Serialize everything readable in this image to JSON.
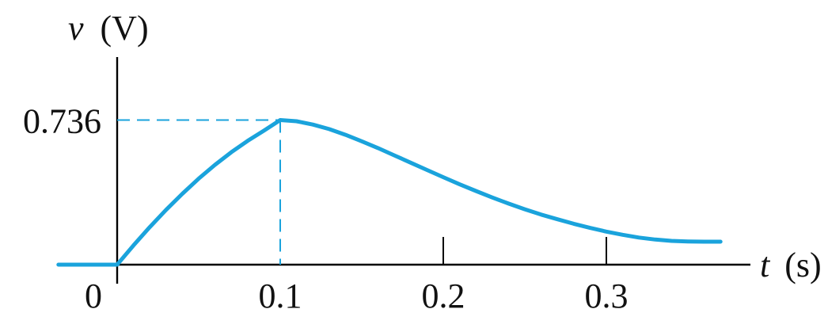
{
  "chart_data": {
    "type": "line",
    "xlabel_var": "t",
    "xlabel_unit": "(s)",
    "ylabel_var": "v",
    "ylabel_unit": "(V)",
    "x_ticks": [
      "0",
      "0.1",
      "0.2",
      "0.3"
    ],
    "x_tick_values": [
      0,
      0.1,
      0.2,
      0.3
    ],
    "y_ticks": [
      "0.736"
    ],
    "y_tick_values": [
      0.736
    ],
    "xlim": [
      -0.036,
      0.385
    ],
    "ylim": [
      0,
      1.0
    ],
    "peak": {
      "x": 0.1,
      "y": 0.736
    },
    "series": [
      {
        "x": [
          -0.036,
          0,
          0.01,
          0.02,
          0.03,
          0.04,
          0.05,
          0.06,
          0.07,
          0.08,
          0.09,
          0.1,
          0.11,
          0.12,
          0.13,
          0.14,
          0.15,
          0.16,
          0.17,
          0.18,
          0.19,
          0.2,
          0.21,
          0.22,
          0.23,
          0.24,
          0.25,
          0.26,
          0.27,
          0.28,
          0.29,
          0.3,
          0.31,
          0.32,
          0.33,
          0.34,
          0.35,
          0.36,
          0.37
        ],
        "y": [
          0,
          0,
          0.098,
          0.191,
          0.279,
          0.361,
          0.438,
          0.508,
          0.572,
          0.63,
          0.682,
          0.736,
          0.73,
          0.713,
          0.69,
          0.661,
          0.628,
          0.593,
          0.556,
          0.519,
          0.482,
          0.445,
          0.409,
          0.375,
          0.342,
          0.311,
          0.282,
          0.255,
          0.231,
          0.208,
          0.187,
          0.168,
          0.152,
          0.138,
          0.128,
          0.121,
          0.118,
          0.117,
          0.117
        ]
      }
    ]
  },
  "colors": {
    "curve": "#1aa3dc",
    "guide": "#1aa3dc",
    "axis": "#000000"
  }
}
